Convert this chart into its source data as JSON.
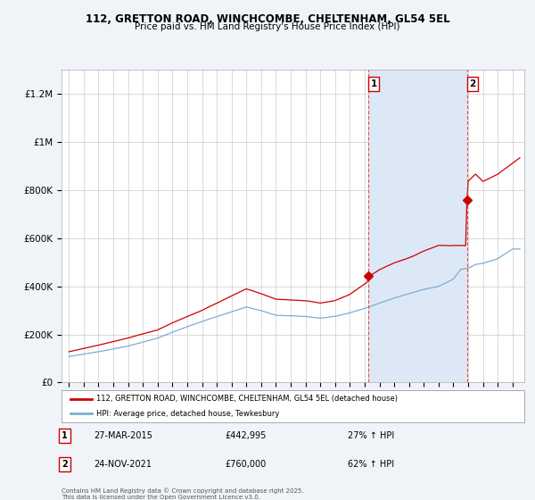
{
  "title": "112, GRETTON ROAD, WINCHCOMBE, CHELTENHAM, GL54 5EL",
  "subtitle": "Price paid vs. HM Land Registry's House Price Index (HPI)",
  "legend_line1": "112, GRETTON ROAD, WINCHCOMBE, CHELTENHAM, GL54 5EL (detached house)",
  "legend_line2": "HPI: Average price, detached house, Tewkesbury",
  "footnote": "Contains HM Land Registry data © Crown copyright and database right 2025.\nThis data is licensed under the Open Government Licence v3.0.",
  "transaction1_date": "27-MAR-2015",
  "transaction1_price": 442995,
  "transaction1_label": "1",
  "transaction1_info": "27-MAR-2015",
  "transaction1_price_str": "£442,995",
  "transaction1_hpi": "27% ↑ HPI",
  "transaction2_date": "24-NOV-2021",
  "transaction2_price": 760000,
  "transaction2_label": "2",
  "transaction2_info": "24-NOV-2021",
  "transaction2_price_str": "£760,000",
  "transaction2_hpi": "62% ↑ HPI",
  "hpi_color": "#7aaed6",
  "property_color": "#cc0000",
  "vline_color": "#dd4444",
  "shade_color": "#dce8f5",
  "background_color": "#f0f4f8",
  "plot_bg_color": "#ffffff",
  "ylim": [
    0,
    1300000
  ],
  "yticks": [
    0,
    200000,
    400000,
    600000,
    800000,
    1000000,
    1200000
  ],
  "ytick_labels": [
    "£0",
    "£200K",
    "£400K",
    "£600K",
    "£800K",
    "£1M",
    "£1.2M"
  ],
  "xlim_start": 1994.5,
  "xlim_end": 2025.8,
  "xticks": [
    1995,
    1996,
    1997,
    1998,
    1999,
    2000,
    2001,
    2002,
    2003,
    2004,
    2005,
    2006,
    2007,
    2008,
    2009,
    2010,
    2011,
    2012,
    2013,
    2014,
    2015,
    2016,
    2017,
    2018,
    2019,
    2020,
    2021,
    2022,
    2023,
    2024,
    2025
  ],
  "transaction1_x": 2015.25,
  "transaction2_x": 2021.92
}
